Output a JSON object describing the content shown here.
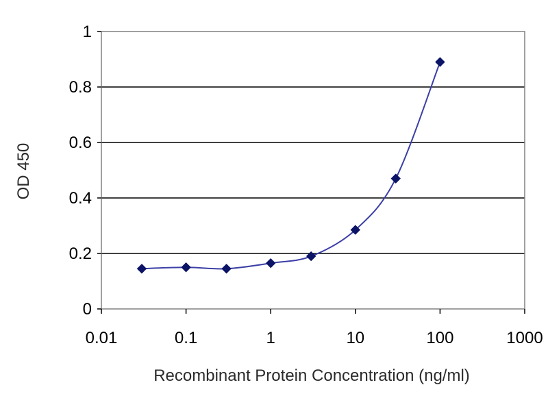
{
  "chart_data": {
    "type": "line",
    "title": "",
    "xlabel": "Recombinant Protein Concentration (ng/ml)",
    "ylabel": "OD 450",
    "xscale": "log",
    "xlim": [
      0.01,
      1000
    ],
    "ylim": [
      0,
      1
    ],
    "x_ticks": [
      "0.01",
      "0.1",
      "1",
      "10",
      "100",
      "1000"
    ],
    "y_ticks": [
      "0",
      "0.2",
      "0.4",
      "0.6",
      "0.8",
      "1"
    ],
    "grid": "horizontal",
    "legend": "none",
    "marker": "diamond",
    "colors": {
      "line": "#3b3fa6",
      "marker": "#0b1466",
      "grid": "#000000",
      "frame": "#808080"
    },
    "series": [
      {
        "x": [
          0.03,
          0.1,
          0.3,
          1,
          3,
          10,
          30,
          100
        ],
        "y": [
          0.145,
          0.15,
          0.145,
          0.165,
          0.19,
          0.285,
          0.47,
          0.89
        ]
      }
    ]
  }
}
